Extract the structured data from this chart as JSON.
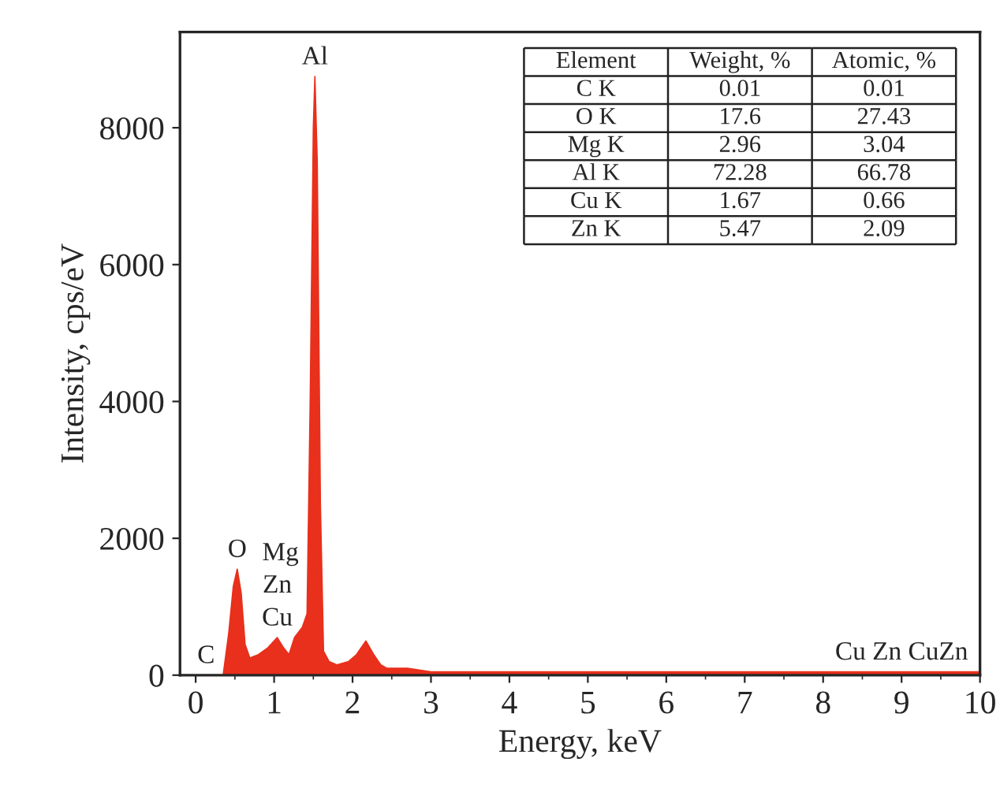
{
  "chart_data": {
    "type": "area",
    "xlabel": "Energy, keV",
    "ylabel": "Intensity, cps/eV",
    "xlim": [
      -0.2,
      10
    ],
    "ylim": [
      0,
      9400
    ],
    "xticks": [
      0,
      1,
      2,
      3,
      4,
      5,
      6,
      7,
      8,
      9,
      10
    ],
    "yticks": [
      0,
      2000,
      4000,
      6000,
      8000
    ],
    "grid": false,
    "legend": false,
    "series": [
      {
        "color": "#e8301c",
        "x": [
          0.3,
          0.35,
          0.42,
          0.48,
          0.53,
          0.58,
          0.63,
          0.69,
          0.8,
          0.92,
          1.04,
          1.12,
          1.19,
          1.26,
          1.36,
          1.42,
          1.46,
          1.5,
          1.52,
          1.55,
          1.59,
          1.63,
          1.7,
          1.8,
          1.95,
          2.05,
          2.17,
          2.27,
          2.36,
          2.44,
          2.7,
          3.0,
          4.0,
          5.0,
          6.0,
          7.0,
          8.0,
          9.0,
          10.0
        ],
        "values": [
          0,
          0,
          600,
          1300,
          1550,
          1200,
          450,
          250,
          300,
          400,
          550,
          400,
          300,
          550,
          700,
          900,
          4000,
          8000,
          8750,
          7500,
          2500,
          350,
          200,
          150,
          200,
          300,
          500,
          300,
          150,
          100,
          100,
          50,
          50,
          50,
          50,
          50,
          50,
          50,
          50
        ]
      }
    ],
    "annotations": [
      {
        "text": "Al",
        "x": 1.52,
        "y": 8750
      },
      {
        "text": "O",
        "x": 0.53,
        "y": 1550
      },
      {
        "text": "Cu",
        "x": 1.04,
        "y": 550
      },
      {
        "text": "Zn",
        "x": 1.04,
        "y": 550
      },
      {
        "text": "Mg",
        "x": 1.36,
        "y": 700
      },
      {
        "text": "C",
        "x": 0.3,
        "y": 0
      },
      {
        "text": "Cu Zn CuZn",
        "x": 9.0,
        "y": 50
      },
      "Element",
      "Weight, %",
      "Atomic, %",
      "C K",
      "0.01",
      "0.01",
      "O K",
      "17.6",
      "27.43",
      "Mg K",
      "2.96",
      "3.04",
      "Al K",
      "72.28",
      "66.78",
      "Cu K",
      "1.67",
      "0.66",
      "Zn K",
      "5.47",
      "2.09"
    ]
  }
}
